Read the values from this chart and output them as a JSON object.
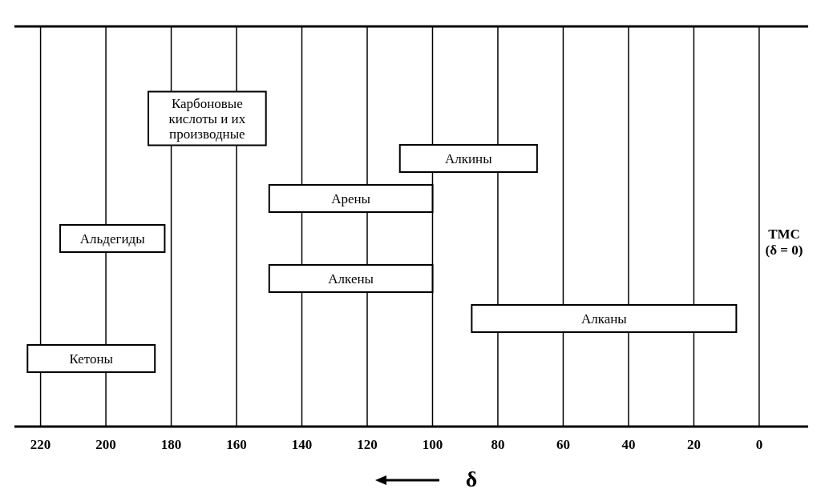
{
  "chart_data": {
    "type": "bar",
    "orientation": "horizontal",
    "categories": [
      "Карбоновые кислоты и их производные",
      "Алкины",
      "Арены",
      "Альдегиды",
      "Алкены",
      "Алканы",
      "Кетоны"
    ],
    "base": [
      151,
      68,
      100,
      182,
      100,
      7,
      185
    ],
    "values": [
      36,
      42,
      50,
      32,
      50,
      81,
      39
    ],
    "color": "#ffffff",
    "xlim": [
      228,
      -15
    ],
    "xticks": [
      220,
      200,
      180,
      160,
      140,
      120,
      100,
      80,
      60,
      40,
      20,
      0
    ],
    "xlabel": "δ",
    "grid": "x",
    "tick_labels": "x",
    "annotations": [
      "ТМС (δ = 0)"
    ]
  }
}
